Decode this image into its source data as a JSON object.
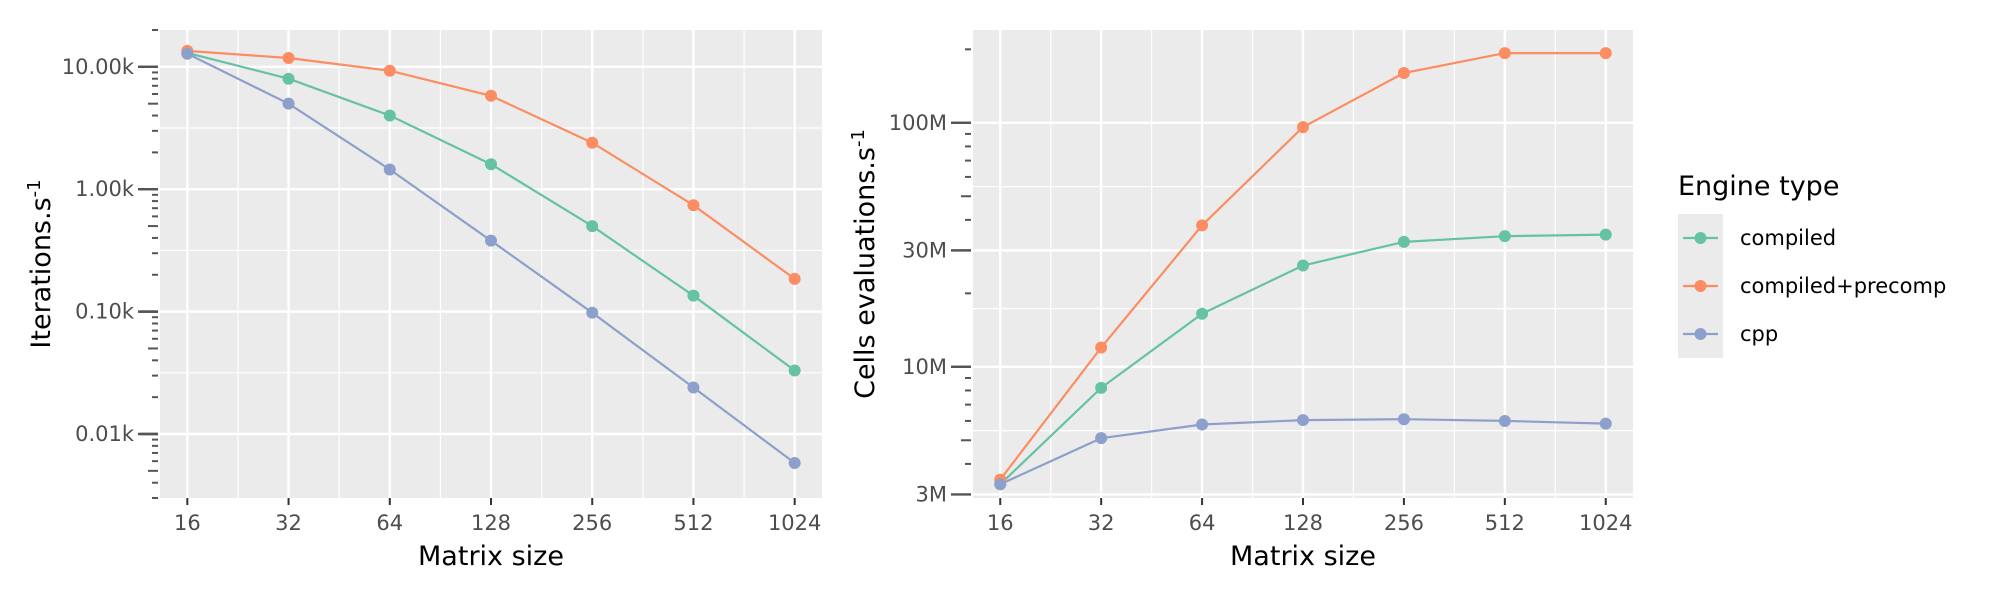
{
  "legend": {
    "title": "Engine type",
    "position": "right",
    "entries": [
      {
        "name": "compiled",
        "color": "#66c2a5"
      },
      {
        "name": "compiled+precomp",
        "color": "#fc8d62"
      },
      {
        "name": "cpp",
        "color": "#8da0cb"
      }
    ]
  },
  "chart_data": [
    {
      "type": "line",
      "xlabel": "Matrix size",
      "ylabel": "Iterations.s",
      "ylabel_superscript": "-1",
      "x_scale": "log2",
      "y_scale": "log10",
      "grid": true,
      "x": [
        16,
        32,
        64,
        128,
        256,
        512,
        1024
      ],
      "x_tick_labels": [
        "16",
        "32",
        "64",
        "128",
        "256",
        "512",
        "1024"
      ],
      "y_ticks": [
        10,
        100,
        1000,
        10000
      ],
      "y_tick_labels": [
        "0.01k",
        "0.10k",
        "1.00k",
        "10.00k"
      ],
      "ylim": [
        3.0,
        20000
      ],
      "series": [
        {
          "name": "compiled",
          "values": [
            13000,
            8000,
            4000,
            1600,
            500,
            135,
            33
          ]
        },
        {
          "name": "compiled+precomp",
          "values": [
            13500,
            11800,
            9300,
            5800,
            2400,
            740,
            185
          ]
        },
        {
          "name": "cpp",
          "values": [
            12800,
            5000,
            1450,
            380,
            98,
            24,
            5.8
          ]
        }
      ]
    },
    {
      "type": "line",
      "xlabel": "Matrix size",
      "ylabel": "Cells evaluations.s",
      "ylabel_superscript": "-1",
      "x_scale": "log2",
      "y_scale": "log10",
      "grid": true,
      "x": [
        16,
        32,
        64,
        128,
        256,
        512,
        1024
      ],
      "x_tick_labels": [
        "16",
        "32",
        "64",
        "128",
        "256",
        "512",
        "1024"
      ],
      "y_ticks": [
        3000000,
        10000000,
        30000000,
        100000000
      ],
      "y_tick_labels": [
        "3M",
        "10M",
        "30M",
        "100M"
      ],
      "ylim": [
        2900000,
        240000000
      ],
      "series": [
        {
          "name": "compiled",
          "values": [
            3300000,
            8200000,
            16500000,
            26000000,
            32500000,
            34300000,
            34800000
          ]
        },
        {
          "name": "compiled+precomp",
          "values": [
            3450000,
            12000000,
            38000000,
            96000000,
            160000000,
            193000000,
            193000000
          ]
        },
        {
          "name": "cpp",
          "values": [
            3300000,
            5100000,
            5800000,
            6050000,
            6100000,
            6000000,
            5850000
          ]
        }
      ]
    }
  ]
}
